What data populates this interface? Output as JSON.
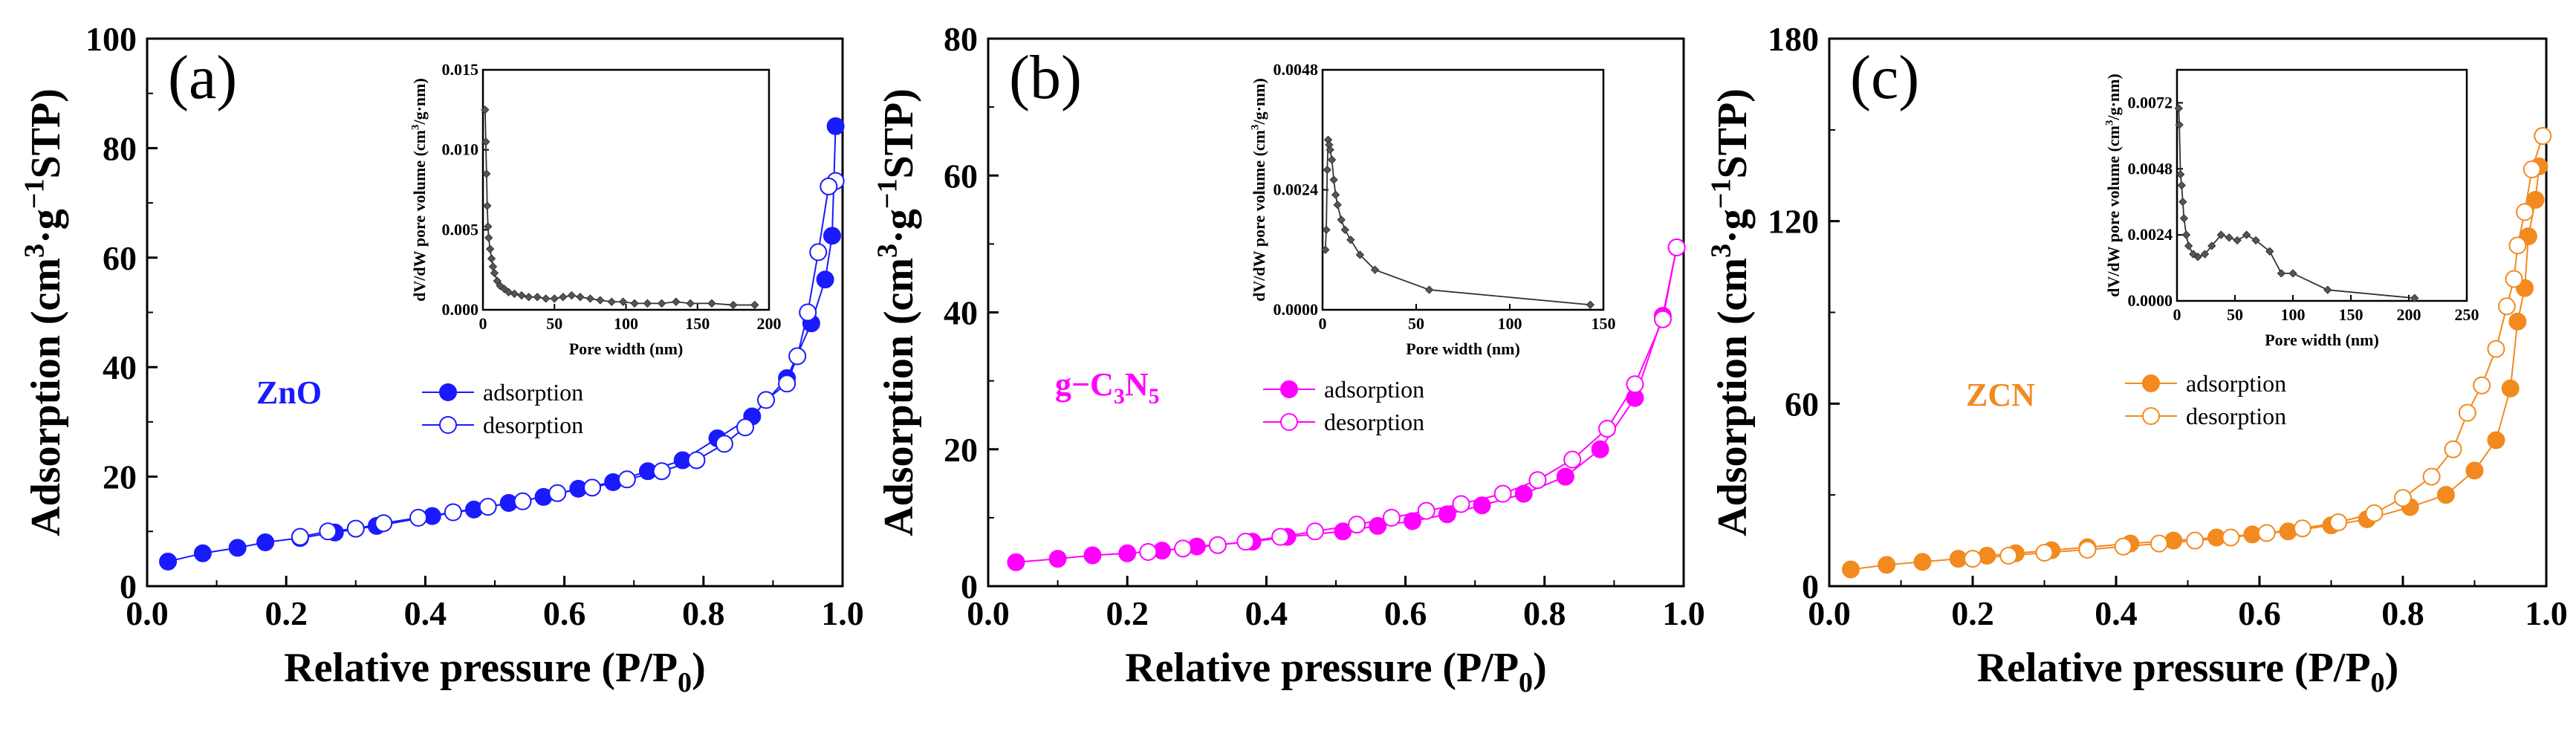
{
  "chart_data": [
    {
      "type": "line",
      "panel_label": "(a)",
      "sample_label": [
        "ZnO"
      ],
      "color": "#1a1aff",
      "xlabel": [
        "Relative pressure (P/P",
        "0",
        ")"
      ],
      "ylabel": [
        "Adsorption (cm",
        "3",
        "·g",
        "−1",
        "STP)"
      ],
      "xlim": [
        0.0,
        1.0
      ],
      "ylim": [
        0,
        100
      ],
      "xticks": [
        "0.0",
        "0.2",
        "0.4",
        "0.6",
        "0.8",
        "1.0"
      ],
      "yticks": [
        "0",
        "20",
        "40",
        "60",
        "80",
        "100"
      ],
      "legend": [
        "adsorption",
        "desorption"
      ],
      "series": [
        {
          "name": "adsorption",
          "x": [
            0.03,
            0.08,
            0.13,
            0.17,
            0.22,
            0.27,
            0.33,
            0.41,
            0.47,
            0.52,
            0.57,
            0.62,
            0.67,
            0.72,
            0.77,
            0.82,
            0.87,
            0.92,
            0.955,
            0.975,
            0.985,
            0.99
          ],
          "y": [
            4.5,
            6.0,
            7.0,
            8.0,
            8.8,
            9.8,
            11.0,
            12.8,
            14.0,
            15.2,
            16.3,
            17.8,
            19.0,
            21.0,
            23.0,
            27.0,
            31.0,
            38.0,
            48.0,
            56.0,
            64.0,
            84.0
          ]
        },
        {
          "name": "desorption",
          "x": [
            0.99,
            0.98,
            0.965,
            0.95,
            0.935,
            0.92,
            0.89,
            0.86,
            0.83,
            0.79,
            0.74,
            0.69,
            0.64,
            0.59,
            0.54,
            0.49,
            0.44,
            0.39,
            0.34,
            0.3,
            0.26,
            0.22
          ],
          "y": [
            74.0,
            73.0,
            61.0,
            50.0,
            42.0,
            37.0,
            34.0,
            29.0,
            26.0,
            23.0,
            21.0,
            19.5,
            18.0,
            17.0,
            15.5,
            14.5,
            13.5,
            12.5,
            11.5,
            10.5,
            10.0,
            9.0
          ]
        }
      ],
      "inset": {
        "xlabel": "Pore width (nm)",
        "ylabel": [
          "dV/dW pore volume (cm",
          "3",
          "/g·nm)"
        ],
        "xlim": [
          0,
          200
        ],
        "ylim": [
          0,
          0.015
        ],
        "xticks": [
          "0",
          "50",
          "100",
          "150",
          "200"
        ],
        "yticks": [
          "0.000",
          "0.005",
          "0.010",
          "0.015"
        ],
        "x": [
          1.5,
          2,
          2.5,
          3,
          3.5,
          4,
          5,
          6,
          7,
          8,
          10,
          12,
          15,
          18,
          22,
          27,
          32,
          38,
          44,
          50,
          56,
          62,
          68,
          75,
          82,
          90,
          98,
          106,
          115,
          125,
          135,
          145,
          160,
          175,
          190
        ],
        "y": [
          0.0125,
          0.0105,
          0.0085,
          0.0065,
          0.0052,
          0.0045,
          0.0038,
          0.0032,
          0.0027,
          0.0023,
          0.0018,
          0.0015,
          0.0013,
          0.0011,
          0.001,
          0.0009,
          0.0008,
          0.0008,
          0.0007,
          0.0007,
          0.0008,
          0.0009,
          0.0008,
          0.0007,
          0.0006,
          0.0005,
          0.0005,
          0.0004,
          0.0004,
          0.0004,
          0.0005,
          0.0004,
          0.0004,
          0.0003,
          0.0003
        ]
      }
    },
    {
      "type": "line",
      "panel_label": "(b)",
      "sample_label": [
        "g−C",
        "3",
        "N",
        "5"
      ],
      "color": "#ff00ff",
      "xlabel": [
        "Relative pressure (P/P",
        "0",
        ")"
      ],
      "ylabel": [
        "Adsorption (cm",
        "3",
        "·g",
        "−1",
        "STP)"
      ],
      "xlim": [
        0.0,
        1.0
      ],
      "ylim": [
        0,
        80
      ],
      "xticks": [
        "0.0",
        "0.2",
        "0.4",
        "0.6",
        "0.8",
        "1.0"
      ],
      "yticks": [
        "0",
        "20",
        "40",
        "60",
        "80"
      ],
      "legend": [
        "adsorption",
        "desorption"
      ],
      "series": [
        {
          "name": "adsorption",
          "x": [
            0.04,
            0.1,
            0.15,
            0.2,
            0.25,
            0.3,
            0.38,
            0.43,
            0.51,
            0.56,
            0.61,
            0.66,
            0.71,
            0.77,
            0.83,
            0.88,
            0.93,
            0.97,
            0.99
          ],
          "y": [
            3.5,
            4.0,
            4.5,
            4.8,
            5.2,
            5.8,
            6.5,
            7.2,
            8.0,
            8.8,
            9.5,
            10.5,
            11.8,
            13.5,
            16.0,
            20.0,
            27.5,
            39.5,
            49.5
          ]
        },
        {
          "name": "desorption",
          "x": [
            0.99,
            0.97,
            0.93,
            0.89,
            0.84,
            0.79,
            0.74,
            0.68,
            0.63,
            0.58,
            0.53,
            0.47,
            0.42,
            0.37,
            0.33,
            0.28,
            0.23
          ],
          "y": [
            49.5,
            39.0,
            29.5,
            23.0,
            18.5,
            15.5,
            13.5,
            12.0,
            11.0,
            10.0,
            9.0,
            8.0,
            7.2,
            6.5,
            6.0,
            5.5,
            5.0
          ]
        }
      ],
      "inset": {
        "xlabel": "Pore width (nm)",
        "ylabel": [
          "dV/dW pore volume (cm",
          "3",
          "/g·nm)"
        ],
        "xlim": [
          0,
          150
        ],
        "ylim": [
          0,
          0.0048
        ],
        "xticks": [
          "0",
          "50",
          "100",
          "150"
        ],
        "yticks": [
          "0.0000",
          "0.0024",
          "0.0048"
        ],
        "x": [
          1.5,
          2,
          2.5,
          3,
          3.5,
          4,
          5,
          6,
          7,
          8,
          10,
          12,
          15,
          20,
          28,
          57,
          143
        ],
        "y": [
          0.0012,
          0.0016,
          0.0028,
          0.0034,
          0.0033,
          0.0032,
          0.003,
          0.0026,
          0.0023,
          0.0021,
          0.0018,
          0.0016,
          0.0014,
          0.0011,
          0.0008,
          0.0004,
          0.0001
        ]
      }
    },
    {
      "type": "line",
      "panel_label": "(c)",
      "sample_label": [
        "ZCN"
      ],
      "color": "#f28a1f",
      "xlabel": [
        "Relative pressure (P/P",
        "0",
        ")"
      ],
      "ylabel": [
        "Adsorption (cm",
        "3",
        "·g",
        "−1",
        "STP)"
      ],
      "xlim": [
        0.0,
        1.0
      ],
      "ylim": [
        0,
        180
      ],
      "xticks": [
        "0.0",
        "0.2",
        "0.4",
        "0.6",
        "0.8",
        "1.0"
      ],
      "yticks": [
        "0",
        "60",
        "120",
        "180"
      ],
      "legend": [
        "adsorption",
        "desorption"
      ],
      "series": [
        {
          "name": "adsorption",
          "x": [
            0.03,
            0.08,
            0.13,
            0.18,
            0.22,
            0.26,
            0.31,
            0.36,
            0.42,
            0.48,
            0.54,
            0.59,
            0.64,
            0.7,
            0.75,
            0.81,
            0.86,
            0.9,
            0.93,
            0.95,
            0.96,
            0.97,
            0.975,
            0.985,
            0.99
          ],
          "y": [
            5.5,
            7.0,
            8.0,
            9.0,
            10.0,
            10.8,
            11.8,
            12.8,
            14.0,
            15.0,
            16.0,
            17.0,
            18.0,
            20.0,
            22.0,
            26.0,
            30.0,
            38.0,
            48.0,
            65.0,
            87.0,
            98.0,
            115.0,
            127.0,
            138.0
          ]
        },
        {
          "name": "desorption",
          "x": [
            0.995,
            0.98,
            0.97,
            0.96,
            0.955,
            0.945,
            0.93,
            0.91,
            0.89,
            0.87,
            0.84,
            0.8,
            0.76,
            0.71,
            0.66,
            0.61,
            0.56,
            0.51,
            0.46,
            0.41,
            0.36,
            0.3,
            0.25,
            0.2
          ],
          "y": [
            148.0,
            137.0,
            123.0,
            112.0,
            101.0,
            92.0,
            78.0,
            66.0,
            57.0,
            45.0,
            36.0,
            29.0,
            24.0,
            21.0,
            19.0,
            17.5,
            16.0,
            15.0,
            14.0,
            13.0,
            12.0,
            11.0,
            10.0,
            9.0
          ]
        }
      ],
      "inset": {
        "xlabel": "Pore width (nm)",
        "ylabel": [
          "dV/dW pore volume (cm",
          "3",
          "/g·nm)"
        ],
        "xlim": [
          0,
          250
        ],
        "ylim": [
          0,
          0.0084
        ],
        "xticks": [
          "0",
          "50",
          "100",
          "150",
          "200",
          "250"
        ],
        "yticks": [
          "0.0000",
          "0.0024",
          "0.0048",
          "0.0072"
        ],
        "x": [
          1.5,
          2,
          3,
          4,
          5,
          6,
          8,
          10,
          14,
          18,
          24,
          30,
          38,
          45,
          52,
          60,
          68,
          80,
          90,
          100,
          130,
          205
        ],
        "y": [
          0.007,
          0.0064,
          0.0046,
          0.0042,
          0.0036,
          0.003,
          0.0024,
          0.002,
          0.0017,
          0.0016,
          0.0017,
          0.002,
          0.0024,
          0.0023,
          0.0022,
          0.0024,
          0.0022,
          0.0018,
          0.001,
          0.001,
          0.0004,
          0.0001
        ]
      }
    }
  ]
}
